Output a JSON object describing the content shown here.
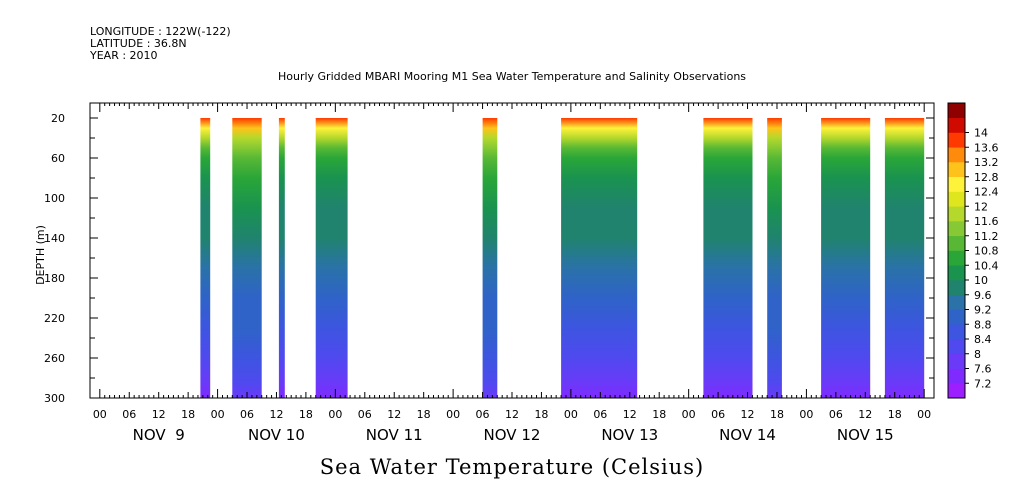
{
  "header": {
    "longitude": "LONGITUDE : 122W(-122)",
    "latitude": "LATITUDE : 36.8N",
    "year": "YEAR : 2010"
  },
  "chart_data": {
    "type": "heatmap",
    "title": "Hourly Gridded MBARI Mooring M1 Sea Water Temperature and Salinity Observations",
    "subtitle": "Sea Water Temperature (Celsius)",
    "ylabel": "DEPTH (m)",
    "xlabel": "",
    "x_unit": "hours since Nov 9 2010 00:00",
    "xlim": [
      -2,
      170
    ],
    "ylim": [
      300,
      5
    ],
    "y_ticks": [
      "20",
      "60",
      "100",
      "140",
      "180",
      "220",
      "260",
      "300"
    ],
    "x_hour_labels": [
      "00",
      "06",
      "12",
      "18"
    ],
    "day_labels": [
      "NOV  9",
      "NOV 10",
      "NOV 11",
      "NOV 12",
      "NOV 13",
      "NOV 14",
      "NOV 15"
    ],
    "data_depth_range": [
      20,
      300
    ],
    "color_scale": {
      "levels": [
        7.2,
        7.6,
        8,
        8.4,
        8.8,
        9.2,
        9.6,
        10,
        10.4,
        10.8,
        11.2,
        11.6,
        12,
        12.4,
        12.8,
        13.2,
        13.6,
        14
      ],
      "labels": [
        "7.2",
        "7.6",
        "8",
        "8.4",
        "8.8",
        "9.2",
        "9.6",
        "10",
        "10.4",
        "10.8",
        "11.2",
        "11.6",
        "12",
        "12.4",
        "12.8",
        "13.2",
        "13.6",
        "14"
      ],
      "colors": [
        "#9b1fff",
        "#7f2bff",
        "#6a3af8",
        "#4f49ef",
        "#3d55e0",
        "#2f63c8",
        "#2a72a8",
        "#20836e",
        "#1a934f",
        "#2aa638",
        "#58b835",
        "#86c934",
        "#b4d82c",
        "#dfe61e",
        "#fff23a",
        "#ffc21a",
        "#ff8a0c",
        "#ff3a00",
        "#d10a00",
        "#8f0000"
      ]
    },
    "data_segments": [
      {
        "start_hour": 20.5,
        "end_hour": 22.5
      },
      {
        "start_hour": 27,
        "end_hour": 33
      },
      {
        "start_hour": 36.5,
        "end_hour": 37.7
      },
      {
        "start_hour": 44,
        "end_hour": 50.5
      },
      {
        "start_hour": 78,
        "end_hour": 81
      },
      {
        "start_hour": 94,
        "end_hour": 109.5
      },
      {
        "start_hour": 123,
        "end_hour": 133
      },
      {
        "start_hour": 136,
        "end_hour": 139
      },
      {
        "start_hour": 147,
        "end_hour": 157
      },
      {
        "start_hour": 160,
        "end_hour": 168
      }
    ],
    "temperature_profile": [
      {
        "depth": 20,
        "temp": 13.6
      },
      {
        "depth": 30,
        "temp": 12.6
      },
      {
        "depth": 40,
        "temp": 11.6
      },
      {
        "depth": 50,
        "temp": 10.9
      },
      {
        "depth": 60,
        "temp": 10.5
      },
      {
        "depth": 80,
        "temp": 10.2
      },
      {
        "depth": 110,
        "temp": 9.9
      },
      {
        "depth": 140,
        "temp": 9.6
      },
      {
        "depth": 170,
        "temp": 9.2
      },
      {
        "depth": 200,
        "temp": 8.8
      },
      {
        "depth": 230,
        "temp": 8.5
      },
      {
        "depth": 260,
        "temp": 8.2
      },
      {
        "depth": 285,
        "temp": 7.8
      },
      {
        "depth": 300,
        "temp": 7.5
      }
    ]
  }
}
